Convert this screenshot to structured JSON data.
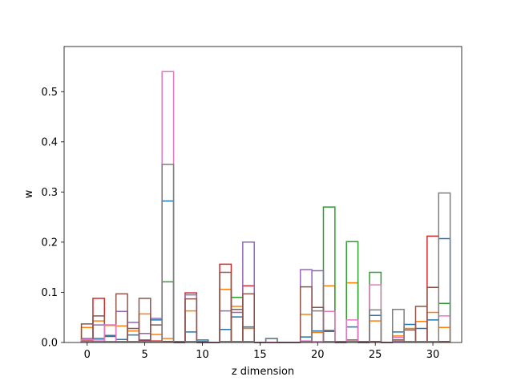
{
  "chart_data": {
    "type": "bar",
    "style": "step-histogram",
    "xlabel": "z dimension",
    "ylabel": "w",
    "title": "",
    "xlim": [
      -2.0,
      32.5
    ],
    "ylim": [
      0,
      0.59
    ],
    "x_ticks": [
      0,
      5,
      10,
      15,
      20,
      25,
      30
    ],
    "y_ticks": [
      0.0,
      0.1,
      0.2,
      0.3,
      0.4,
      0.5
    ],
    "x_tick_labels": [
      "0",
      "5",
      "10",
      "15",
      "20",
      "25",
      "30"
    ],
    "y_tick_labels": [
      "0.0",
      "0.1",
      "0.2",
      "0.3",
      "0.4",
      "0.5"
    ],
    "grid": false,
    "legend": "none",
    "bin_width": 1,
    "x": [
      0,
      1,
      2,
      3,
      4,
      5,
      6,
      7,
      8,
      9,
      10,
      11,
      12,
      13,
      14,
      15,
      16,
      17,
      18,
      19,
      20,
      21,
      22,
      23,
      24,
      25,
      26,
      27,
      28,
      29,
      30,
      31
    ],
    "series": [
      {
        "color": "#1f77b4",
        "values": [
          0.003,
          0.008,
          0.014,
          0.006,
          0.015,
          0.005,
          0.045,
          0.282,
          0,
          0.021,
          0.005,
          0,
          0.026,
          0.051,
          0.031,
          0,
          0.008,
          0,
          0,
          0.011,
          0.023,
          0.024,
          0,
          0.031,
          0,
          0.054,
          0,
          0.021,
          0.036,
          0.028,
          0.045,
          0.207
        ]
      },
      {
        "color": "#ff7f0e",
        "values": [
          0.03,
          0.043,
          0.034,
          0.033,
          0.023,
          0.057,
          0.016,
          0.008,
          0,
          0.063,
          0,
          0,
          0.106,
          0.072,
          0.028,
          0,
          0,
          0,
          0,
          0.056,
          0.02,
          0.113,
          0,
          0.119,
          0,
          0.043,
          0,
          0.013,
          0.028,
          0.042,
          0.06,
          0.03
        ]
      },
      {
        "color": "#2ca02c",
        "values": [
          0.002,
          0.002,
          0.002,
          0.002,
          0.002,
          0.002,
          0.002,
          0.121,
          0.002,
          0.002,
          0.002,
          0,
          0.002,
          0.09,
          0.002,
          0,
          0,
          0,
          0,
          0.002,
          0.002,
          0.27,
          0.002,
          0.201,
          0.002,
          0.14,
          0,
          0.002,
          0.002,
          0.002,
          0.002,
          0.078
        ]
      },
      {
        "color": "#d62728",
        "values": [
          0.003,
          0.088,
          0.002,
          0.002,
          0.002,
          0.003,
          0.003,
          0.002,
          0,
          0.099,
          0,
          0,
          0.156,
          0.002,
          0.113,
          0,
          0,
          0,
          0,
          0.002,
          0.002,
          0.002,
          0,
          0.002,
          0,
          0.002,
          0,
          0.005,
          0.002,
          0.002,
          0.212,
          0.002
        ]
      },
      {
        "color": "#9467bd",
        "values": [
          0.008,
          0.035,
          0.035,
          0.062,
          0.04,
          0.018,
          0.048,
          0.002,
          0,
          0.095,
          0,
          0,
          0.063,
          0.06,
          0.2,
          0,
          0,
          0,
          0,
          0.145,
          0.143,
          0.002,
          0,
          0.002,
          0,
          0.002,
          0,
          0.002,
          0.002,
          0.002,
          0.002,
          0.002
        ]
      },
      {
        "color": "#8c564b",
        "values": [
          0.037,
          0.053,
          0.012,
          0.097,
          0.028,
          0.088,
          0.035,
          0.002,
          0,
          0.087,
          0,
          0,
          0.14,
          0.066,
          0.097,
          0,
          0,
          0,
          0,
          0.111,
          0.07,
          0.022,
          0,
          0.005,
          0,
          0.002,
          0,
          0.005,
          0.025,
          0.072,
          0.11,
          0.002
        ]
      },
      {
        "color": "#e377c2",
        "values": [
          0.006,
          0.005,
          0.035,
          0.002,
          0.002,
          0.002,
          0.002,
          0.54,
          0,
          0.002,
          0,
          0,
          0.002,
          0.002,
          0.002,
          0,
          0,
          0,
          0,
          0.003,
          0.002,
          0.062,
          0,
          0.045,
          0,
          0.115,
          0,
          0.01,
          0.002,
          0.002,
          0.002,
          0.053
        ]
      },
      {
        "color": "#7f7f7f",
        "values": [
          0.002,
          0.002,
          0.002,
          0.002,
          0.002,
          0.002,
          0.002,
          0.355,
          0,
          0.002,
          0,
          0,
          0.002,
          0.002,
          0.002,
          0,
          0.008,
          0,
          0,
          0.002,
          0.063,
          0.002,
          0,
          0.002,
          0,
          0.065,
          0,
          0.066,
          0.002,
          0.002,
          0.002,
          0.298
        ]
      }
    ]
  }
}
